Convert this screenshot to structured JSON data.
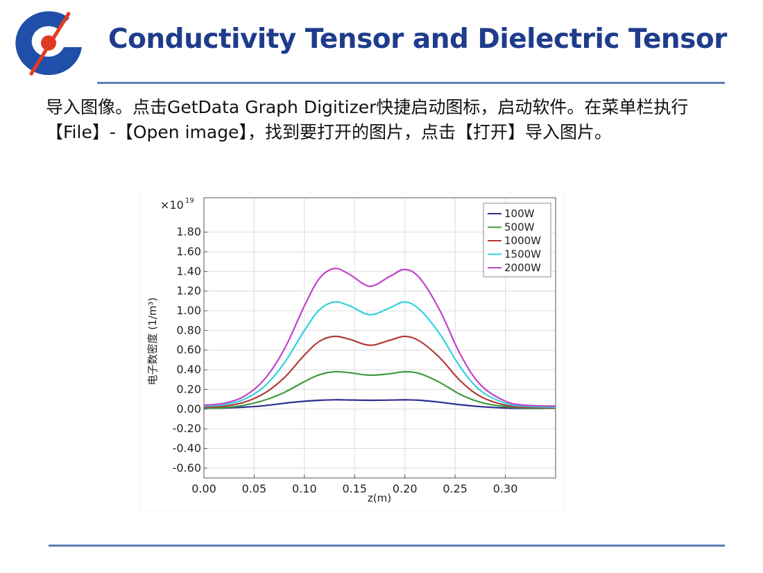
{
  "slide": {
    "title": "Conductivity Tensor and Dielectric Tensor",
    "body": "导入图像。点击GetData Graph Digitizer快捷启动图标，启动软件。在菜单栏执行【File】-【Open image】，找到要打开的图片，点击【打开】导入图片。"
  },
  "colors": {
    "title": "#1f3c8c",
    "rule": "#5b7fb6",
    "logo_blue": "#1f4fa8",
    "logo_red": "#e23a22"
  },
  "chart_data": {
    "type": "line",
    "title": "",
    "xlabel": "z(m)",
    "ylabel": "电子数密度 (1/m³)",
    "y_multiplier": "×10^19",
    "y_multiplier_base": "×10",
    "y_multiplier_exp": "19",
    "xlim": [
      0.0,
      0.35
    ],
    "ylim": [
      -0.7,
      2.15
    ],
    "x_ticks": [
      0.0,
      0.05,
      0.1,
      0.15,
      0.2,
      0.25,
      0.3
    ],
    "x_tick_labels": [
      "0.00",
      "0.05",
      "0.10",
      "0.15",
      "0.20",
      "0.25",
      "0.30"
    ],
    "y_ticks": [
      1.8,
      1.6,
      1.4,
      1.2,
      1.0,
      0.8,
      0.6,
      0.4,
      0.2,
      0.0,
      -0.2,
      -0.4,
      -0.6
    ],
    "y_tick_labels": [
      "1.80",
      "1.60",
      "1.40",
      "1.20",
      "1.00",
      "0.80",
      "0.60",
      "0.40",
      "0.20",
      "0.00",
      "-0.20",
      "-0.40",
      "-0.60"
    ],
    "grid": true,
    "legend_position": "top-right",
    "x": [
      0.0,
      0.02,
      0.04,
      0.06,
      0.08,
      0.1,
      0.115,
      0.13,
      0.145,
      0.165,
      0.185,
      0.2,
      0.215,
      0.235,
      0.255,
      0.275,
      0.3,
      0.32,
      0.35
    ],
    "series": [
      {
        "name": "100W",
        "color": "#2b2f8f",
        "values": [
          0.01,
          0.012,
          0.02,
          0.035,
          0.06,
          0.08,
          0.09,
          0.095,
          0.093,
          0.09,
          0.092,
          0.094,
          0.09,
          0.07,
          0.045,
          0.025,
          0.012,
          0.008,
          0.01
        ]
      },
      {
        "name": "500W",
        "color": "#3e9a3e",
        "values": [
          0.01,
          0.015,
          0.04,
          0.09,
          0.17,
          0.28,
          0.35,
          0.38,
          0.37,
          0.345,
          0.36,
          0.38,
          0.36,
          0.27,
          0.15,
          0.07,
          0.025,
          0.012,
          0.01
        ]
      },
      {
        "name": "1000W",
        "color": "#b23a3a",
        "values": [
          0.02,
          0.03,
          0.07,
          0.16,
          0.32,
          0.55,
          0.69,
          0.74,
          0.71,
          0.65,
          0.7,
          0.74,
          0.69,
          0.52,
          0.29,
          0.13,
          0.04,
          0.02,
          0.015
        ]
      },
      {
        "name": "1500W",
        "color": "#2ed3dc",
        "values": [
          0.03,
          0.045,
          0.1,
          0.23,
          0.47,
          0.8,
          1.01,
          1.09,
          1.05,
          0.96,
          1.03,
          1.09,
          1.01,
          0.76,
          0.43,
          0.19,
          0.06,
          0.03,
          0.02
        ]
      },
      {
        "name": "2000W",
        "color": "#c142c8",
        "values": [
          0.04,
          0.06,
          0.13,
          0.3,
          0.61,
          1.05,
          1.33,
          1.43,
          1.37,
          1.25,
          1.35,
          1.42,
          1.33,
          1.0,
          0.56,
          0.25,
          0.08,
          0.04,
          0.03
        ]
      }
    ]
  }
}
